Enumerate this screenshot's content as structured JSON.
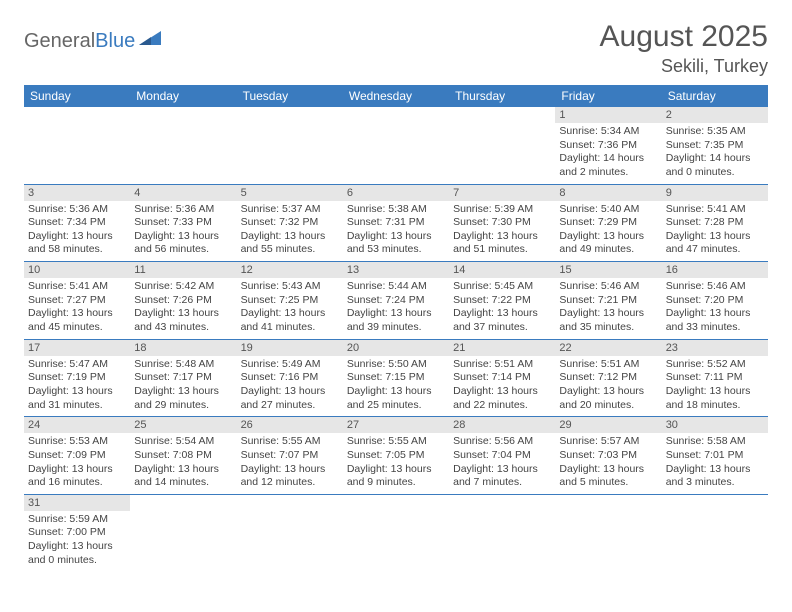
{
  "logo": {
    "part1": "General",
    "part2": "Blue"
  },
  "header": {
    "title": "August 2025",
    "location": "Sekili, Turkey"
  },
  "weekdays": [
    "Sunday",
    "Monday",
    "Tuesday",
    "Wednesday",
    "Thursday",
    "Friday",
    "Saturday"
  ],
  "colors": {
    "header_bg": "#3a7bbf",
    "daynum_bg": "#e6e6e6",
    "border": "#3a7bbf"
  },
  "weeks": [
    [
      null,
      null,
      null,
      null,
      null,
      {
        "n": "1",
        "sunrise": "Sunrise: 5:34 AM",
        "sunset": "Sunset: 7:36 PM",
        "daylight": "Daylight: 14 hours and 2 minutes."
      },
      {
        "n": "2",
        "sunrise": "Sunrise: 5:35 AM",
        "sunset": "Sunset: 7:35 PM",
        "daylight": "Daylight: 14 hours and 0 minutes."
      }
    ],
    [
      {
        "n": "3",
        "sunrise": "Sunrise: 5:36 AM",
        "sunset": "Sunset: 7:34 PM",
        "daylight": "Daylight: 13 hours and 58 minutes."
      },
      {
        "n": "4",
        "sunrise": "Sunrise: 5:36 AM",
        "sunset": "Sunset: 7:33 PM",
        "daylight": "Daylight: 13 hours and 56 minutes."
      },
      {
        "n": "5",
        "sunrise": "Sunrise: 5:37 AM",
        "sunset": "Sunset: 7:32 PM",
        "daylight": "Daylight: 13 hours and 55 minutes."
      },
      {
        "n": "6",
        "sunrise": "Sunrise: 5:38 AM",
        "sunset": "Sunset: 7:31 PM",
        "daylight": "Daylight: 13 hours and 53 minutes."
      },
      {
        "n": "7",
        "sunrise": "Sunrise: 5:39 AM",
        "sunset": "Sunset: 7:30 PM",
        "daylight": "Daylight: 13 hours and 51 minutes."
      },
      {
        "n": "8",
        "sunrise": "Sunrise: 5:40 AM",
        "sunset": "Sunset: 7:29 PM",
        "daylight": "Daylight: 13 hours and 49 minutes."
      },
      {
        "n": "9",
        "sunrise": "Sunrise: 5:41 AM",
        "sunset": "Sunset: 7:28 PM",
        "daylight": "Daylight: 13 hours and 47 minutes."
      }
    ],
    [
      {
        "n": "10",
        "sunrise": "Sunrise: 5:41 AM",
        "sunset": "Sunset: 7:27 PM",
        "daylight": "Daylight: 13 hours and 45 minutes."
      },
      {
        "n": "11",
        "sunrise": "Sunrise: 5:42 AM",
        "sunset": "Sunset: 7:26 PM",
        "daylight": "Daylight: 13 hours and 43 minutes."
      },
      {
        "n": "12",
        "sunrise": "Sunrise: 5:43 AM",
        "sunset": "Sunset: 7:25 PM",
        "daylight": "Daylight: 13 hours and 41 minutes."
      },
      {
        "n": "13",
        "sunrise": "Sunrise: 5:44 AM",
        "sunset": "Sunset: 7:24 PM",
        "daylight": "Daylight: 13 hours and 39 minutes."
      },
      {
        "n": "14",
        "sunrise": "Sunrise: 5:45 AM",
        "sunset": "Sunset: 7:22 PM",
        "daylight": "Daylight: 13 hours and 37 minutes."
      },
      {
        "n": "15",
        "sunrise": "Sunrise: 5:46 AM",
        "sunset": "Sunset: 7:21 PM",
        "daylight": "Daylight: 13 hours and 35 minutes."
      },
      {
        "n": "16",
        "sunrise": "Sunrise: 5:46 AM",
        "sunset": "Sunset: 7:20 PM",
        "daylight": "Daylight: 13 hours and 33 minutes."
      }
    ],
    [
      {
        "n": "17",
        "sunrise": "Sunrise: 5:47 AM",
        "sunset": "Sunset: 7:19 PM",
        "daylight": "Daylight: 13 hours and 31 minutes."
      },
      {
        "n": "18",
        "sunrise": "Sunrise: 5:48 AM",
        "sunset": "Sunset: 7:17 PM",
        "daylight": "Daylight: 13 hours and 29 minutes."
      },
      {
        "n": "19",
        "sunrise": "Sunrise: 5:49 AM",
        "sunset": "Sunset: 7:16 PM",
        "daylight": "Daylight: 13 hours and 27 minutes."
      },
      {
        "n": "20",
        "sunrise": "Sunrise: 5:50 AM",
        "sunset": "Sunset: 7:15 PM",
        "daylight": "Daylight: 13 hours and 25 minutes."
      },
      {
        "n": "21",
        "sunrise": "Sunrise: 5:51 AM",
        "sunset": "Sunset: 7:14 PM",
        "daylight": "Daylight: 13 hours and 22 minutes."
      },
      {
        "n": "22",
        "sunrise": "Sunrise: 5:51 AM",
        "sunset": "Sunset: 7:12 PM",
        "daylight": "Daylight: 13 hours and 20 minutes."
      },
      {
        "n": "23",
        "sunrise": "Sunrise: 5:52 AM",
        "sunset": "Sunset: 7:11 PM",
        "daylight": "Daylight: 13 hours and 18 minutes."
      }
    ],
    [
      {
        "n": "24",
        "sunrise": "Sunrise: 5:53 AM",
        "sunset": "Sunset: 7:09 PM",
        "daylight": "Daylight: 13 hours and 16 minutes."
      },
      {
        "n": "25",
        "sunrise": "Sunrise: 5:54 AM",
        "sunset": "Sunset: 7:08 PM",
        "daylight": "Daylight: 13 hours and 14 minutes."
      },
      {
        "n": "26",
        "sunrise": "Sunrise: 5:55 AM",
        "sunset": "Sunset: 7:07 PM",
        "daylight": "Daylight: 13 hours and 12 minutes."
      },
      {
        "n": "27",
        "sunrise": "Sunrise: 5:55 AM",
        "sunset": "Sunset: 7:05 PM",
        "daylight": "Daylight: 13 hours and 9 minutes."
      },
      {
        "n": "28",
        "sunrise": "Sunrise: 5:56 AM",
        "sunset": "Sunset: 7:04 PM",
        "daylight": "Daylight: 13 hours and 7 minutes."
      },
      {
        "n": "29",
        "sunrise": "Sunrise: 5:57 AM",
        "sunset": "Sunset: 7:03 PM",
        "daylight": "Daylight: 13 hours and 5 minutes."
      },
      {
        "n": "30",
        "sunrise": "Sunrise: 5:58 AM",
        "sunset": "Sunset: 7:01 PM",
        "daylight": "Daylight: 13 hours and 3 minutes."
      }
    ],
    [
      {
        "n": "31",
        "sunrise": "Sunrise: 5:59 AM",
        "sunset": "Sunset: 7:00 PM",
        "daylight": "Daylight: 13 hours and 0 minutes."
      },
      null,
      null,
      null,
      null,
      null,
      null
    ]
  ]
}
